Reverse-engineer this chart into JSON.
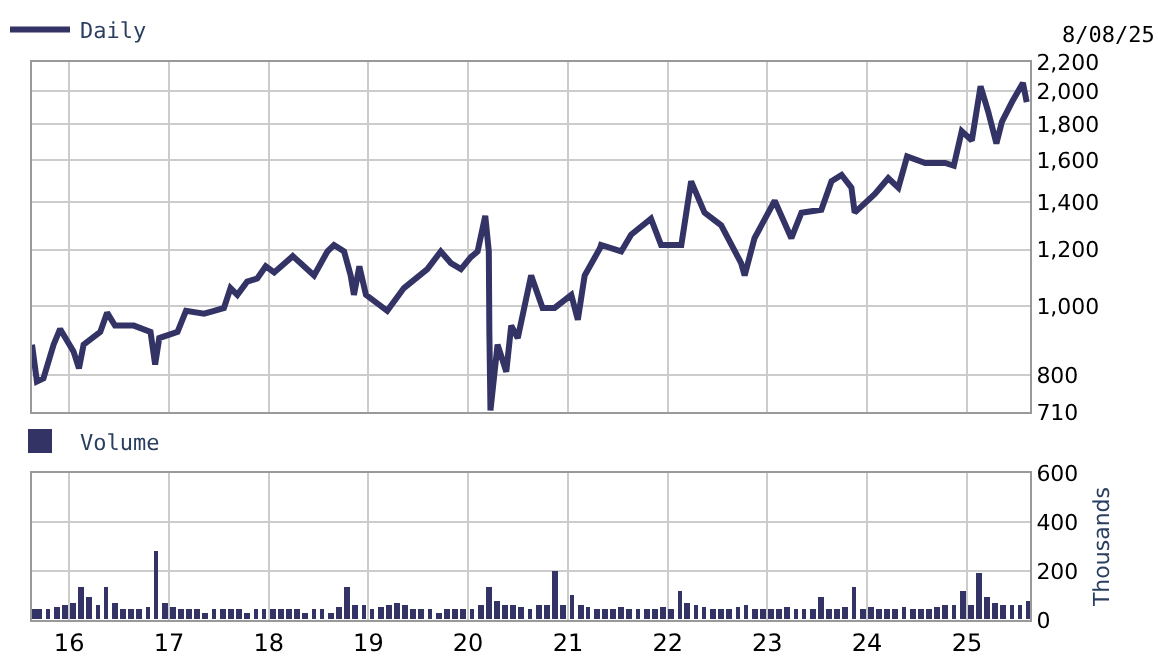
{
  "chart_data": [
    {
      "type": "line",
      "legend": "top left",
      "grid": true,
      "log": "y",
      "tick_labels": "y",
      "marker": "none",
      "line_style": "solid",
      "annotations": [
        "8/08/25"
      ],
      "series": [
        {
          "name": "Daily",
          "color": "#333366",
          "x": [
            "2015-08-18",
            "2015-09-05",
            "2015-09-29",
            "2015-11-05",
            "2015-11-29",
            "2016-01-17",
            "2016-02-06",
            "2016-02-23",
            "2016-04-24",
            "2016-05-19",
            "2016-06-17",
            "2016-08-25",
            "2016-10-25",
            "2016-11-11",
            "2016-11-26",
            "2017-02-01",
            "2017-03-04",
            "2017-05-09",
            "2017-06-15",
            "2017-07-21",
            "2017-08-14",
            "2017-09-08",
            "2017-10-14",
            "2017-11-20",
            "2017-12-21",
            "2018-01-21",
            "2018-03-30",
            "2018-05-10",
            "2018-06-16",
            "2018-08-04",
            "2018-08-28",
            "2018-10-04",
            "2018-10-28",
            "2018-11-09",
            "2018-11-29",
            "2018-12-23",
            "2019-03-11",
            "2019-05-11",
            "2019-08-05",
            "2019-09-23",
            "2019-10-30",
            "2019-12-06",
            "2020-01-11",
            "2020-02-05",
            "2020-03-04",
            "2020-03-17",
            "2020-03-19",
            "2020-03-23",
            "2020-04-18",
            "2020-05-20",
            "2020-06-07",
            "2020-07-01",
            "2020-08-19",
            "2020-09-30",
            "2020-11-13",
            "2021-01-13",
            "2021-02-06",
            "2021-03-03",
            "2021-04-28",
            "2021-05-02",
            "2021-07-15",
            "2021-08-20",
            "2021-11-01",
            "2021-12-08",
            "2022-02-20",
            "2022-03-28",
            "2022-05-16",
            "2022-07-16",
            "2022-09-27",
            "2022-10-10",
            "2022-11-15",
            "2023-01-28",
            "2023-03-30",
            "2023-05-06",
            "2023-07-18",
            "2023-08-24",
            "2023-09-30",
            "2023-11-05",
            "2023-11-17",
            "2024-01-30",
            "2024-03-19",
            "2024-04-25",
            "2024-05-27",
            "2024-08-01",
            "2024-10-13",
            "2024-11-14",
            "2024-12-13",
            "2025-01-19",
            "2025-02-20",
            "2025-03-20",
            "2025-04-19",
            "2025-05-09",
            "2025-06-15",
            "2025-07-25",
            "2025-08-08"
          ],
          "values": [
            883,
            784,
            792,
            883,
            929,
            864,
            818,
            883,
            920,
            979,
            939,
            939,
            920,
            828,
            902,
            920,
            985,
            976,
            985,
            994,
            1060,
            1037,
            1082,
            1093,
            1137,
            1115,
            1175,
            1137,
            1104,
            1193,
            1218,
            1193,
            1104,
            1037,
            1137,
            1037,
            985,
            1060,
            1127,
            1193,
            1149,
            1127,
            1171,
            1193,
            1338,
            1193,
            920,
            714,
            883,
            809,
            939,
            902,
            1104,
            994,
            994,
            1037,
            957,
            1104,
            1205,
            1218,
            1193,
            1259,
            1326,
            1218,
            1218,
            1496,
            1352,
            1298,
            1149,
            1104,
            1245,
            1405,
            1245,
            1352,
            1365,
            1496,
            1527,
            1466,
            1352,
            1436,
            1511,
            1466,
            1621,
            1587,
            1587,
            1573,
            1759,
            1707,
            2033,
            1872,
            1690,
            1812,
            1932,
            2055,
            1932
          ]
        }
      ],
      "xlim": [
        "2015-08-18",
        "2025-08-20"
      ],
      "xticks": [
        {
          "value": "2016-01-01",
          "label": null
        },
        {
          "value": "2017-01-01",
          "label": null
        },
        {
          "value": "2018-01-01",
          "label": null
        },
        {
          "value": "2019-01-01",
          "label": null
        },
        {
          "value": "2020-01-01",
          "label": null
        },
        {
          "value": "2021-01-01",
          "label": null
        },
        {
          "value": "2022-01-01",
          "label": null
        },
        {
          "value": "2023-01-01",
          "label": null
        },
        {
          "value": "2024-01-01",
          "label": null
        },
        {
          "value": "2025-01-01",
          "label": null
        }
      ],
      "ylim": [
        710,
        2200
      ],
      "yticks": [
        710,
        800,
        {
          "value": 1000,
          "label": "1,000"
        },
        {
          "value": 1200,
          "label": "1,200"
        },
        {
          "value": 1400,
          "label": "1,400"
        },
        {
          "value": 1600,
          "label": "1,600"
        },
        {
          "value": 1800,
          "label": "1,800"
        },
        {
          "value": 2000,
          "label": "2,000"
        },
        {
          "value": 2200,
          "label": "2,200"
        }
      ]
    },
    {
      "type": "bar",
      "legend": "top left",
      "grid": true,
      "ylabel": "Thousands",
      "series": [
        {
          "name": "Volume",
          "color": "#333366",
          "x": [
            "2015-08-25",
            "2015-09-15",
            "2015-10-15",
            "2015-11-15",
            "2015-12-15",
            "2016-01-15",
            "2016-02-15",
            "2016-03-15",
            "2016-04-15",
            "2016-05-15",
            "2016-06-15",
            "2016-07-15",
            "2016-08-15",
            "2016-09-15",
            "2016-10-15",
            "2016-11-15",
            "2016-12-15",
            "2017-01-15",
            "2017-02-15",
            "2017-03-15",
            "2017-04-15",
            "2017-05-15",
            "2017-06-15",
            "2017-07-15",
            "2017-08-15",
            "2017-09-15",
            "2017-10-15",
            "2017-11-15",
            "2017-12-15",
            "2018-01-15",
            "2018-02-15",
            "2018-03-15",
            "2018-04-15",
            "2018-05-15",
            "2018-06-15",
            "2018-07-15",
            "2018-08-15",
            "2018-09-15",
            "2018-10-15",
            "2018-11-15",
            "2018-12-15",
            "2019-01-15",
            "2019-02-15",
            "2019-03-15",
            "2019-04-15",
            "2019-05-15",
            "2019-06-15",
            "2019-07-15",
            "2019-08-15",
            "2019-09-15",
            "2019-10-15",
            "2019-11-15",
            "2019-12-15",
            "2020-01-15",
            "2020-02-15",
            "2020-03-15",
            "2020-04-15",
            "2020-05-15",
            "2020-06-15",
            "2020-07-15",
            "2020-08-15",
            "2020-09-15",
            "2020-10-15",
            "2020-11-15",
            "2020-12-15",
            "2021-01-15",
            "2021-02-15",
            "2021-03-15",
            "2021-04-15",
            "2021-05-15",
            "2021-06-15",
            "2021-07-15",
            "2021-08-15",
            "2021-09-15",
            "2021-10-15",
            "2021-11-15",
            "2021-12-15",
            "2022-01-15",
            "2022-02-15",
            "2022-03-15",
            "2022-04-15",
            "2022-05-15",
            "2022-06-15",
            "2022-07-15",
            "2022-08-15",
            "2022-09-15",
            "2022-10-15",
            "2022-11-15",
            "2022-12-15",
            "2023-01-15",
            "2023-02-15",
            "2023-03-15",
            "2023-04-15",
            "2023-05-15",
            "2023-06-15",
            "2023-07-15",
            "2023-08-15",
            "2023-09-15",
            "2023-10-15",
            "2023-11-15",
            "2023-12-15",
            "2024-01-15",
            "2024-02-15",
            "2024-03-15",
            "2024-04-15",
            "2024-05-15",
            "2024-06-15",
            "2024-07-15",
            "2024-08-15",
            "2024-09-15",
            "2024-10-15",
            "2024-11-15",
            "2024-12-15",
            "2025-01-15",
            "2025-02-15",
            "2025-03-15",
            "2025-04-15",
            "2025-05-15",
            "2025-06-15",
            "2025-07-15",
            "2025-08-15"
          ],
          "values": [
            40,
            40,
            40,
            50,
            60,
            70,
            130,
            90,
            60,
            130,
            70,
            40,
            40,
            40,
            50,
            280,
            70,
            50,
            40,
            40,
            40,
            30,
            40,
            40,
            40,
            40,
            30,
            40,
            40,
            40,
            40,
            40,
            40,
            30,
            40,
            40,
            30,
            50,
            130,
            60,
            60,
            40,
            50,
            60,
            70,
            60,
            40,
            40,
            40,
            30,
            40,
            40,
            40,
            40,
            60,
            130,
            80,
            60,
            60,
            50,
            40,
            60,
            60,
            200,
            60,
            100,
            60,
            50,
            40,
            40,
            40,
            50,
            40,
            40,
            40,
            40,
            50,
            40,
            120,
            70,
            60,
            50,
            40,
            40,
            40,
            50,
            60,
            40,
            40,
            40,
            40,
            50,
            40,
            40,
            40,
            90,
            40,
            40,
            50,
            130,
            40,
            50,
            40,
            40,
            40,
            50,
            40,
            40,
            40,
            50,
            60,
            60,
            120,
            60,
            190,
            90,
            70,
            60,
            60,
            60,
            80
          ]
        }
      ],
      "xlim": [
        "2015-08-18",
        "2025-08-20"
      ],
      "xticks": [
        {
          "value": "2016-01-01",
          "label": "16"
        },
        {
          "value": "2017-01-01",
          "label": "17"
        },
        {
          "value": "2018-01-01",
          "label": "18"
        },
        {
          "value": "2019-01-01",
          "label": "19"
        },
        {
          "value": "2020-01-01",
          "label": "20"
        },
        {
          "value": "2021-01-01",
          "label": "21"
        },
        {
          "value": "2022-01-01",
          "label": "22"
        },
        {
          "value": "2023-01-01",
          "label": "23"
        },
        {
          "value": "2024-01-01",
          "label": "24"
        },
        {
          "value": "2025-01-01",
          "label": "25"
        }
      ],
      "ylim": [
        0,
        600
      ],
      "yticks": [
        0,
        200,
        400,
        600
      ]
    }
  ]
}
